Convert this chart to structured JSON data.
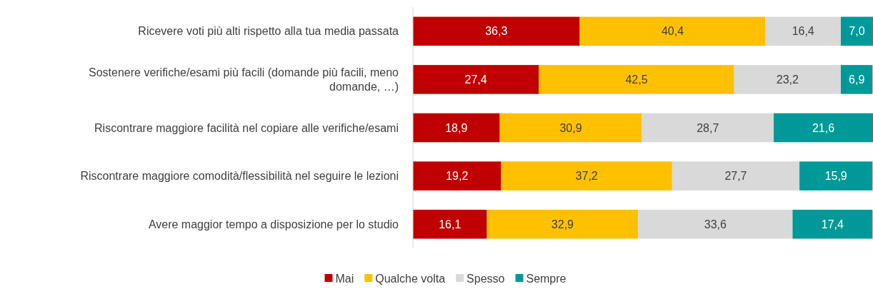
{
  "chart_data": {
    "type": "bar",
    "orientation": "horizontal",
    "stacked": true,
    "legend": "bottom",
    "categories": [
      "Ricevere voti più alti rispetto alla tua media passata",
      "Sostenere verifiche/esami più facili (domande più facili, meno domande, …)",
      "Riscontrare maggiore facilità nel copiare alle verifiche/esami",
      "Riscontrare maggiore comodità/flessibilità nel seguire le lezioni",
      "Avere maggior tempo a disposizione per lo studio"
    ],
    "series": [
      {
        "name": "Mai",
        "color": "#c00000",
        "values": [
          36.3,
          27.4,
          18.9,
          19.2,
          16.1
        ],
        "value_labels": [
          "36,3",
          "27,4",
          "18,9",
          "19,2",
          "16,1"
        ]
      },
      {
        "name": "Qualche volta",
        "color": "#ffc000",
        "values": [
          40.4,
          42.5,
          30.9,
          37.2,
          32.9
        ],
        "value_labels": [
          "40,4",
          "42,5",
          "30,9",
          "37,2",
          "32,9"
        ]
      },
      {
        "name": "Spesso",
        "color": "#d9d9d9",
        "values": [
          16.4,
          23.2,
          28.7,
          27.7,
          33.6
        ],
        "value_labels": [
          "16,4",
          "23,2",
          "28,7",
          "27,7",
          "33,6"
        ]
      },
      {
        "name": "Sempre",
        "color": "#009999",
        "values": [
          7.0,
          6.9,
          21.6,
          15.9,
          17.4
        ],
        "value_labels": [
          "7,0",
          "6,9",
          "21,6",
          "15,9",
          "17,4"
        ]
      }
    ]
  }
}
